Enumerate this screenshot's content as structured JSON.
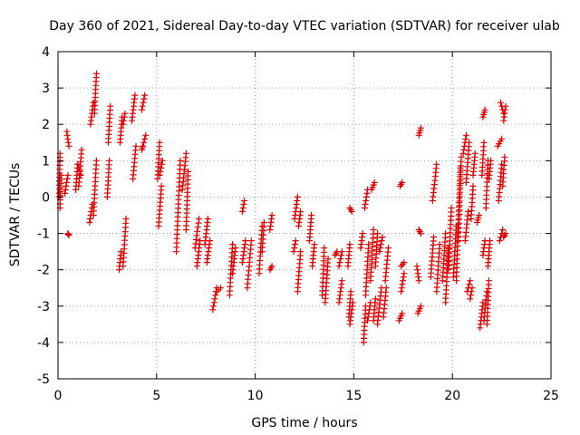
{
  "chart_data": {
    "type": "scatter",
    "title": "Day 360 of 2021, Sidereal Day-to-day VTEC variation (SDTVAR) for receiver ulab",
    "xlabel": "GPS time / hours",
    "ylabel": "SDTVAR / TECUs",
    "xlim": [
      0,
      25
    ],
    "ylim": [
      -5,
      4
    ],
    "xticks": [
      "0",
      "5",
      "10",
      "15",
      "20",
      "25"
    ],
    "yticks": [
      "-5",
      "-4",
      "-3",
      "-2",
      "-1",
      "0",
      "1",
      "2",
      "3",
      "4"
    ],
    "grid": true,
    "marker": "+",
    "marker_color": "#e00000",
    "series": [
      {
        "name": "SDTVAR",
        "segments": [
          [
            0.05,
            0.0,
            0.1,
            1.2
          ],
          [
            0.1,
            -0.3,
            0.15,
            0.6
          ],
          [
            0.35,
            0.1,
            0.5,
            0.6
          ],
          [
            0.45,
            1.8,
            0.55,
            1.4
          ],
          [
            0.5,
            -1.0,
            0.55,
            -1.05
          ],
          [
            0.9,
            0.2,
            1.0,
            0.9
          ],
          [
            1.05,
            0.3,
            1.2,
            1.3
          ],
          [
            1.0,
            0.9,
            1.15,
            0.6
          ],
          [
            1.6,
            -0.7,
            1.75,
            -0.2
          ],
          [
            1.65,
            2.0,
            1.8,
            2.6
          ],
          [
            1.8,
            -0.5,
            1.95,
            1.0
          ],
          [
            1.85,
            2.3,
            1.95,
            3.4
          ],
          [
            2.5,
            0.0,
            2.6,
            1.0
          ],
          [
            2.55,
            1.5,
            2.65,
            2.5
          ],
          [
            3.1,
            -2.0,
            3.2,
            -1.5
          ],
          [
            3.15,
            1.5,
            3.25,
            2.2
          ],
          [
            3.3,
            -1.9,
            3.45,
            -0.6
          ],
          [
            3.3,
            2.0,
            3.4,
            2.3
          ],
          [
            3.75,
            2.1,
            3.9,
            2.8
          ],
          [
            3.8,
            0.5,
            3.95,
            1.4
          ],
          [
            4.25,
            2.4,
            4.4,
            2.8
          ],
          [
            4.3,
            1.4,
            4.45,
            1.7
          ],
          [
            4.25,
            1.3,
            4.3,
            1.4
          ],
          [
            5.05,
            0.5,
            5.15,
            1.5
          ],
          [
            5.1,
            -0.8,
            5.25,
            0.3
          ],
          [
            5.15,
            0.6,
            5.3,
            1.0
          ],
          [
            6.0,
            -1.5,
            6.2,
            1.0
          ],
          [
            6.3,
            0.2,
            6.5,
            1.2
          ],
          [
            6.5,
            -0.9,
            6.6,
            0.7
          ],
          [
            6.95,
            -1.4,
            7.15,
            -0.6
          ],
          [
            7.05,
            -1.9,
            7.2,
            -1.2
          ],
          [
            7.45,
            -1.3,
            7.6,
            -0.6
          ],
          [
            7.55,
            -1.8,
            7.7,
            -1.2
          ],
          [
            7.85,
            -3.1,
            8.05,
            -2.5
          ],
          [
            8.05,
            -2.6,
            8.25,
            -2.5
          ],
          [
            8.7,
            -2.7,
            8.85,
            -1.3
          ],
          [
            8.85,
            -2.1,
            9.0,
            -1.4
          ],
          [
            9.35,
            -0.4,
            9.45,
            -0.1
          ],
          [
            9.35,
            -1.8,
            9.5,
            -1.2
          ],
          [
            9.6,
            -2.5,
            9.8,
            -1.2
          ],
          [
            10.2,
            -2.1,
            10.35,
            -0.8
          ],
          [
            10.35,
            -1.5,
            10.45,
            -0.7
          ],
          [
            10.75,
            -2.0,
            10.85,
            -1.9
          ],
          [
            10.75,
            -0.9,
            10.85,
            -0.5
          ],
          [
            11.95,
            -1.5,
            12.05,
            -1.2
          ],
          [
            12.0,
            -0.6,
            12.15,
            0.0
          ],
          [
            12.15,
            -2.6,
            12.3,
            -1.5
          ],
          [
            12.2,
            -0.8,
            12.3,
            -0.4
          ],
          [
            12.75,
            -1.2,
            12.85,
            -0.5
          ],
          [
            12.9,
            -1.9,
            13.0,
            -1.3
          ],
          [
            13.4,
            -2.7,
            13.5,
            -1.4
          ],
          [
            13.55,
            -2.9,
            13.7,
            -1.7
          ],
          [
            14.05,
            -1.6,
            14.15,
            -1.5
          ],
          [
            14.25,
            -2.9,
            14.4,
            -2.3
          ],
          [
            14.25,
            -1.9,
            14.4,
            -1.5
          ],
          [
            14.7,
            -1.9,
            14.8,
            -1.3
          ],
          [
            14.75,
            -3.3,
            14.85,
            -2.6
          ],
          [
            14.8,
            -0.3,
            14.9,
            -0.4
          ],
          [
            14.8,
            -3.5,
            14.95,
            -2.9
          ],
          [
            15.35,
            -1.4,
            15.45,
            -1.0
          ],
          [
            15.5,
            -4.0,
            15.6,
            -3.0
          ],
          [
            15.6,
            -2.7,
            15.75,
            -1.3
          ],
          [
            15.55,
            -0.3,
            15.7,
            0.2
          ],
          [
            15.7,
            -3.4,
            15.85,
            -2.9
          ],
          [
            15.85,
            -2.3,
            16.0,
            -0.9
          ],
          [
            15.9,
            0.2,
            16.05,
            0.4
          ],
          [
            16.0,
            -3.4,
            16.1,
            -2.8
          ],
          [
            16.1,
            -1.9,
            16.2,
            -1.0
          ],
          [
            16.2,
            -3.5,
            16.4,
            -2.5
          ],
          [
            16.3,
            -1.5,
            16.45,
            -1.1
          ],
          [
            16.5,
            -3.3,
            16.65,
            -2.5
          ],
          [
            16.6,
            -2.3,
            16.75,
            -1.4
          ],
          [
            17.3,
            -3.4,
            17.45,
            -3.2
          ],
          [
            17.35,
            0.3,
            17.45,
            0.4
          ],
          [
            17.4,
            -2.6,
            17.55,
            -2.1
          ],
          [
            17.4,
            -1.9,
            17.55,
            -1.8
          ],
          [
            18.2,
            -1.9,
            18.3,
            -2.3
          ],
          [
            18.25,
            -3.2,
            18.4,
            -3.0
          ],
          [
            18.3,
            1.7,
            18.4,
            1.9
          ],
          [
            18.3,
            -0.9,
            18.4,
            -1.0
          ],
          [
            18.9,
            -2.2,
            19.05,
            -1.1
          ],
          [
            19.0,
            -0.1,
            19.2,
            0.9
          ],
          [
            19.2,
            -2.6,
            19.35,
            -1.3
          ],
          [
            19.5,
            -2.3,
            19.65,
            -1.0
          ],
          [
            19.65,
            -2.9,
            19.8,
            -1.4
          ],
          [
            19.8,
            -2.0,
            19.95,
            -0.3
          ],
          [
            20.05,
            -2.2,
            20.2,
            -0.8
          ],
          [
            20.2,
            -2.3,
            20.4,
            0.8
          ],
          [
            20.3,
            -1.2,
            20.45,
            1.1
          ],
          [
            20.55,
            1.2,
            20.7,
            1.7
          ],
          [
            20.65,
            -1.2,
            20.8,
            -0.4
          ],
          [
            20.7,
            0.4,
            20.85,
            1.5
          ],
          [
            20.75,
            -2.6,
            20.9,
            -2.3
          ],
          [
            20.9,
            -2.8,
            21.0,
            -2.5
          ],
          [
            20.95,
            -0.6,
            21.05,
            0.3
          ],
          [
            21.05,
            0.6,
            21.15,
            1.2
          ],
          [
            21.25,
            -0.7,
            21.35,
            -0.5
          ],
          [
            21.4,
            -3.6,
            21.55,
            -2.9
          ],
          [
            21.5,
            0.6,
            21.6,
            1.5
          ],
          [
            21.55,
            2.2,
            21.65,
            2.4
          ],
          [
            21.55,
            -1.6,
            21.65,
            -1.2
          ],
          [
            21.6,
            -3.4,
            21.75,
            -2.6
          ],
          [
            21.7,
            -0.3,
            21.8,
            1.0
          ],
          [
            21.75,
            -3.5,
            21.85,
            -2.3
          ],
          [
            21.8,
            -1.9,
            21.9,
            -1.2
          ],
          [
            21.85,
            0.5,
            21.95,
            1.0
          ],
          [
            22.3,
            1.4,
            22.5,
            1.6
          ],
          [
            22.35,
            -0.1,
            22.5,
            0.9
          ],
          [
            22.45,
            2.6,
            22.6,
            2.3
          ],
          [
            22.55,
            0.3,
            22.65,
            1.1
          ],
          [
            22.6,
            2.1,
            22.7,
            2.5
          ],
          [
            22.4,
            -1.2,
            22.55,
            -0.9
          ],
          [
            22.6,
            -1.1,
            22.7,
            -1.0
          ]
        ]
      }
    ]
  }
}
